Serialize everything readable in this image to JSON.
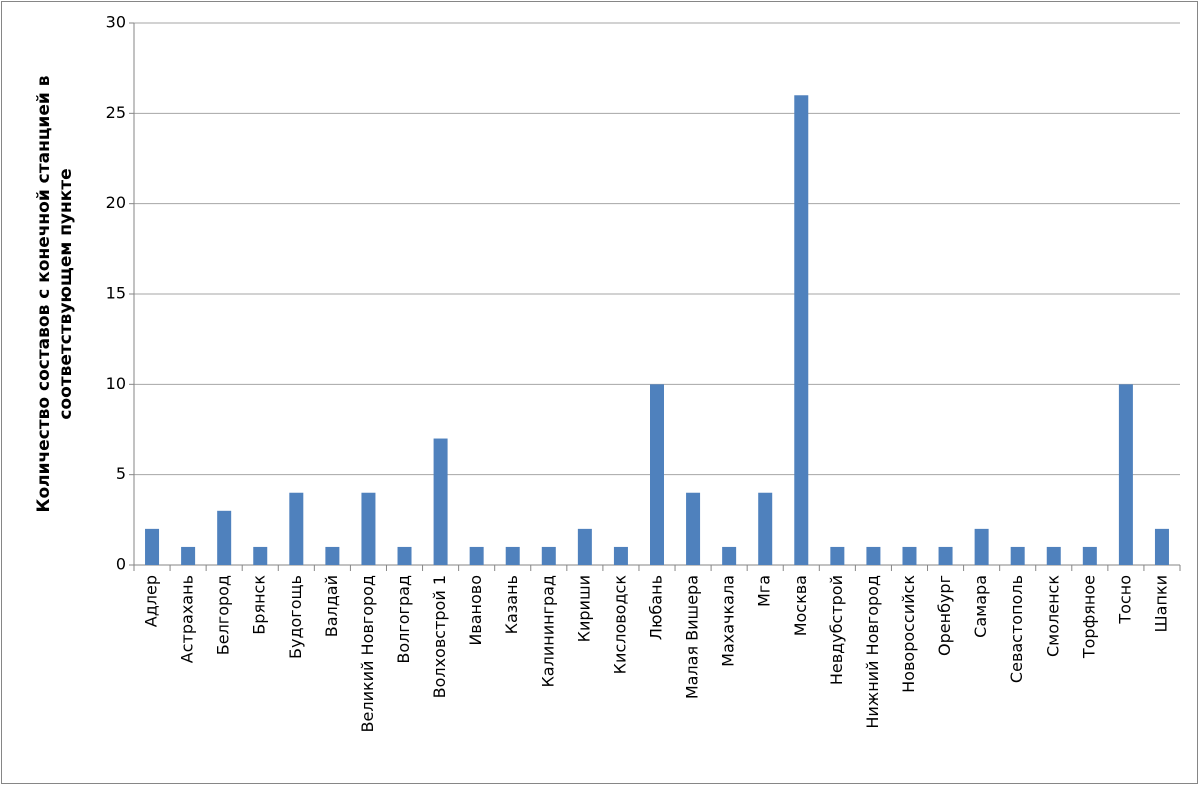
{
  "chart_data": {
    "type": "bar",
    "ylabel": [
      "Количество составов с конечной станцией в",
      "соответствующем пункте"
    ],
    "categories": [
      "Адлер",
      "Астрахань",
      "Белгород",
      "Брянск",
      "Будогощь",
      "Валдай",
      "Великий Новгород",
      "Волгоград",
      "Волховстрой 1",
      "Иваново",
      "Казань",
      "Калининград",
      "Кириши",
      "Кисловодск",
      "Любань",
      "Малая Вишера",
      "Махачкала",
      "Мга",
      "Москва",
      "Невдубстрой",
      "Нижний Новгород",
      "Новороссийск",
      "Оренбург",
      "Самара",
      "Севастополь",
      "Смоленск",
      "Торфяное",
      "Тосно",
      "Шапки"
    ],
    "values": [
      2,
      1,
      3,
      1,
      4,
      1,
      4,
      1,
      7,
      1,
      1,
      1,
      2,
      1,
      10,
      4,
      1,
      4,
      26,
      1,
      1,
      1,
      1,
      2,
      1,
      1,
      1,
      10,
      2
    ],
    "color": "#4f81bd",
    "ylim": [
      0,
      30
    ],
    "yticks": [
      0,
      5,
      10,
      15,
      20,
      25,
      30
    ],
    "grid": true
  }
}
